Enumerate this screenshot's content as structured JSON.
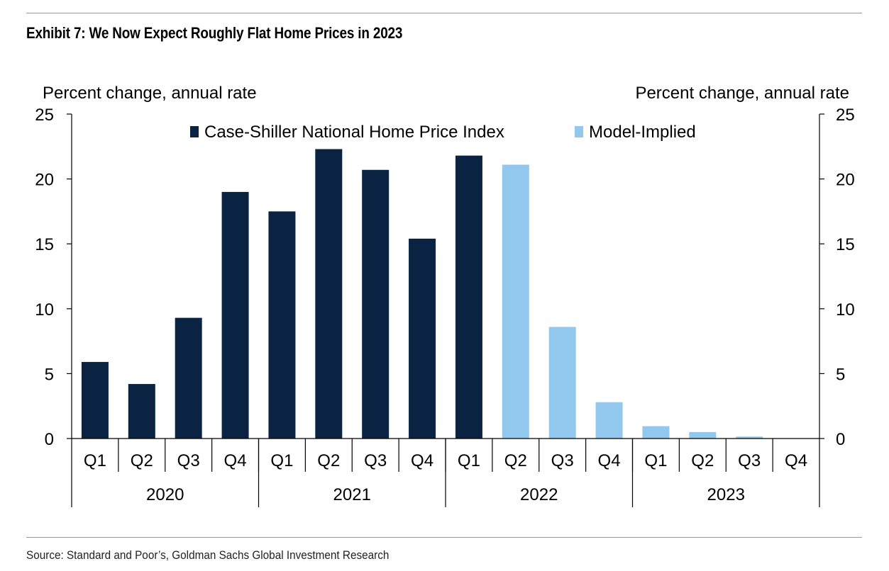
{
  "header": {
    "title": "Exhibit 7: We Now Expect Roughly Flat Home Prices in 2023"
  },
  "footer": {
    "source": "Source: Standard and Poor’s, Goldman Sachs Global Investment Research"
  },
  "colors": {
    "actual": "#0a2342",
    "model": "#93c8ee",
    "axis": "#000000",
    "rule": "#9a9a9a"
  },
  "chart_data": {
    "type": "bar",
    "title": "Exhibit 7: We Now Expect Roughly Flat Home Prices in 2023",
    "ylabel_left": "Percent change, annual rate",
    "ylabel_right": "Percent change, annual rate",
    "ylim": [
      0,
      25
    ],
    "yticks": [
      0,
      5,
      10,
      15,
      20,
      25
    ],
    "grid": false,
    "legend_position": "top",
    "categories": [
      "Q1",
      "Q2",
      "Q3",
      "Q4",
      "Q1",
      "Q2",
      "Q3",
      "Q4",
      "Q1",
      "Q2",
      "Q3",
      "Q4",
      "Q1",
      "Q2",
      "Q3",
      "Q4"
    ],
    "groups": [
      {
        "label": "2020",
        "count": 4
      },
      {
        "label": "2021",
        "count": 4
      },
      {
        "label": "2022",
        "count": 4
      },
      {
        "label": "2023",
        "count": 4
      }
    ],
    "series": [
      {
        "name": "Case-Shiller National Home Price Index",
        "color": "#0a2342",
        "values": [
          5.9,
          4.2,
          9.3,
          19.0,
          17.5,
          22.3,
          20.7,
          15.4,
          21.8,
          null,
          null,
          null,
          null,
          null,
          null,
          null
        ]
      },
      {
        "name": "Model-Implied",
        "color": "#93c8ee",
        "values": [
          null,
          null,
          null,
          null,
          null,
          null,
          null,
          null,
          null,
          21.1,
          8.6,
          2.8,
          0.95,
          0.5,
          0.15,
          0.0
        ]
      }
    ]
  }
}
